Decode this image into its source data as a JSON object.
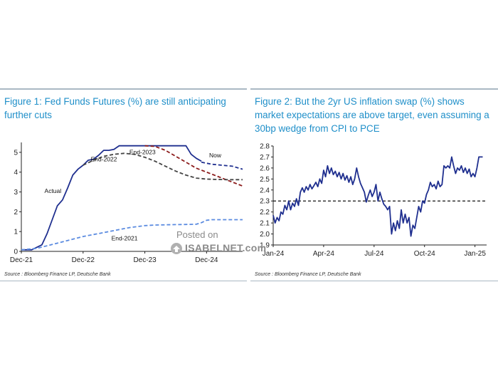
{
  "watermark": {
    "line1": "Posted on",
    "line2": "ISABELNET.com"
  },
  "chart_data": [
    {
      "type": "line",
      "title": "Figure 1: Fed Funds Futures (%) are still anticipating further cuts",
      "source": "Source : Bloomberg Finance LP, Deutsche Bank",
      "xlabel": "",
      "ylabel": "",
      "ylim": [
        0,
        5.5
      ],
      "yticks": [
        "0",
        "1",
        "2",
        "3",
        "4",
        "5"
      ],
      "xticks": [
        {
          "label": "Dec-21",
          "x": 0
        },
        {
          "label": "Dec-22",
          "x": 12
        },
        {
          "label": "Dec-23",
          "x": 24
        },
        {
          "label": "Dec-24",
          "x": 36
        }
      ],
      "xlim": [
        0,
        43
      ],
      "colors": {
        "actual": "#1f2f8f",
        "end2023": "#8b1a1a",
        "end2022": "#444444",
        "end2021": "#5b8be0"
      },
      "series": [
        {
          "name": "Actual",
          "key": "actual",
          "dash": false,
          "x": [
            0,
            2,
            4,
            5,
            6,
            7,
            8,
            9,
            10,
            11,
            12,
            13,
            14,
            15,
            16,
            17,
            18,
            19,
            20,
            22,
            24,
            26,
            28,
            30,
            32,
            33,
            34,
            35
          ],
          "y": [
            0.08,
            0.08,
            0.33,
            0.9,
            1.6,
            2.3,
            2.6,
            3.2,
            3.85,
            4.15,
            4.35,
            4.6,
            4.65,
            4.85,
            5.1,
            5.1,
            5.15,
            5.33,
            5.33,
            5.33,
            5.33,
            5.33,
            5.33,
            5.33,
            5.33,
            4.9,
            4.7,
            4.55
          ]
        },
        {
          "name": "Now",
          "key": "actual",
          "dash": true,
          "x": [
            35,
            37,
            39,
            41,
            43
          ],
          "y": [
            4.5,
            4.4,
            4.35,
            4.3,
            4.15
          ]
        },
        {
          "name": "End-2023",
          "key": "end2023",
          "dash": true,
          "x": [
            24,
            26,
            28,
            30,
            32,
            34,
            36,
            38,
            40,
            43
          ],
          "y": [
            5.33,
            5.3,
            5.1,
            4.8,
            4.5,
            4.2,
            4.0,
            3.8,
            3.6,
            3.3
          ]
        },
        {
          "name": "End-2022",
          "key": "end2022",
          "dash": true,
          "x": [
            12,
            14,
            16,
            18,
            20,
            22,
            24,
            26,
            28,
            30,
            32,
            34,
            36,
            38,
            40,
            43
          ],
          "y": [
            4.35,
            4.6,
            4.8,
            4.9,
            4.95,
            4.9,
            4.75,
            4.55,
            4.3,
            4.05,
            3.85,
            3.7,
            3.65,
            3.63,
            3.62,
            3.62
          ]
        },
        {
          "name": "End-2021",
          "key": "end2021",
          "dash": true,
          "x": [
            0,
            3,
            6,
            9,
            12,
            15,
            18,
            21,
            24,
            26,
            28,
            30,
            32,
            34,
            35,
            36,
            37,
            40,
            43
          ],
          "y": [
            0.08,
            0.15,
            0.35,
            0.55,
            0.75,
            0.9,
            1.05,
            1.2,
            1.3,
            1.33,
            1.34,
            1.35,
            1.36,
            1.37,
            1.45,
            1.57,
            1.6,
            1.6,
            1.6
          ]
        }
      ],
      "annotations": [
        {
          "text": "Actual",
          "x": 4.5,
          "y": 2.95
        },
        {
          "text": "Now",
          "x": 36.5,
          "y": 4.75
        },
        {
          "text": "End-2023",
          "x": 21,
          "y": 4.9
        },
        {
          "text": "End-2022",
          "x": 13.5,
          "y": 4.55
        },
        {
          "text": "End-2021",
          "x": 17.5,
          "y": 0.55
        }
      ]
    },
    {
      "type": "line",
      "title": "Figure 2: But the 2yr US inflation swap (%) shows market expectations are above target, even assuming a 30bp wedge from CPI to PCE",
      "source": "Source : Bloomberg Finance LP, Deutsche Bank",
      "xlabel": "",
      "ylabel": "",
      "ylim": [
        1.9,
        2.8
      ],
      "yticks": [
        "1.9",
        "2.0",
        "2.1",
        "2.2",
        "2.3",
        "2.4",
        "2.5",
        "2.6",
        "2.7",
        "2.8"
      ],
      "xticks": [
        {
          "label": "Jan-24",
          "x": 0
        },
        {
          "label": "Apr-24",
          "x": 13
        },
        {
          "label": "Jul-24",
          "x": 26
        },
        {
          "label": "Oct-24",
          "x": 39
        },
        {
          "label": "Jan-25",
          "x": 52
        }
      ],
      "xlim": [
        0,
        55
      ],
      "reference_line": 2.3,
      "colors": {
        "swap": "#1f2f8f",
        "ref": "#111111"
      },
      "series": [
        {
          "name": "2yr US inflation swap",
          "key": "swap",
          "x": [
            0,
            0.5,
            1,
            1.5,
            2,
            2.5,
            3,
            3.5,
            4,
            4.5,
            5,
            5.5,
            6,
            6.5,
            7,
            7.5,
            8,
            8.5,
            9,
            9.5,
            10,
            10.5,
            11,
            11.5,
            12,
            12.5,
            13,
            13.5,
            14,
            14.5,
            15,
            15.5,
            16,
            16.5,
            17,
            17.5,
            18,
            18.5,
            19,
            19.5,
            20,
            20.5,
            21,
            21.5,
            22,
            22.5,
            23,
            23.5,
            24,
            24.5,
            25,
            25.5,
            26,
            26.5,
            27,
            27.5,
            28,
            28.5,
            29,
            29.5,
            30,
            30.5,
            31,
            31.5,
            32,
            32.5,
            33,
            33.5,
            34,
            34.5,
            35,
            35.5,
            36,
            36.5,
            37,
            37.5,
            38,
            38.5,
            39,
            39.5,
            40,
            40.5,
            41,
            41.5,
            42,
            42.5,
            43,
            43.5,
            44,
            44.5,
            45,
            45.5,
            46,
            46.5,
            47,
            47.5,
            48,
            48.5,
            49,
            49.5,
            50,
            50.5,
            51,
            51.5,
            52,
            52.5,
            53,
            53.5,
            54
          ],
          "y": [
            2.17,
            2.1,
            2.15,
            2.12,
            2.2,
            2.18,
            2.26,
            2.22,
            2.3,
            2.22,
            2.28,
            2.25,
            2.32,
            2.26,
            2.38,
            2.42,
            2.38,
            2.43,
            2.4,
            2.45,
            2.41,
            2.44,
            2.47,
            2.43,
            2.5,
            2.46,
            2.58,
            2.52,
            2.62,
            2.55,
            2.6,
            2.54,
            2.57,
            2.52,
            2.56,
            2.5,
            2.55,
            2.49,
            2.53,
            2.47,
            2.52,
            2.45,
            2.5,
            2.6,
            2.52,
            2.46,
            2.42,
            2.38,
            2.29,
            2.35,
            2.4,
            2.34,
            2.38,
            2.45,
            2.3,
            2.38,
            2.32,
            2.27,
            2.25,
            2.22,
            2.25,
            2.0,
            2.1,
            2.03,
            2.12,
            2.05,
            2.22,
            2.1,
            2.18,
            2.1,
            2.15,
            1.98,
            2.08,
            2.05,
            2.15,
            2.25,
            2.2,
            2.3,
            2.28,
            2.36,
            2.4,
            2.47,
            2.43,
            2.45,
            2.41,
            2.48,
            2.43,
            2.45,
            2.62,
            2.6,
            2.62,
            2.6,
            2.7,
            2.62,
            2.55,
            2.6,
            2.58,
            2.62,
            2.56,
            2.6,
            2.55,
            2.59,
            2.52,
            2.55,
            2.52,
            2.6,
            2.7,
            2.7,
            2.7
          ]
        }
      ]
    }
  ]
}
